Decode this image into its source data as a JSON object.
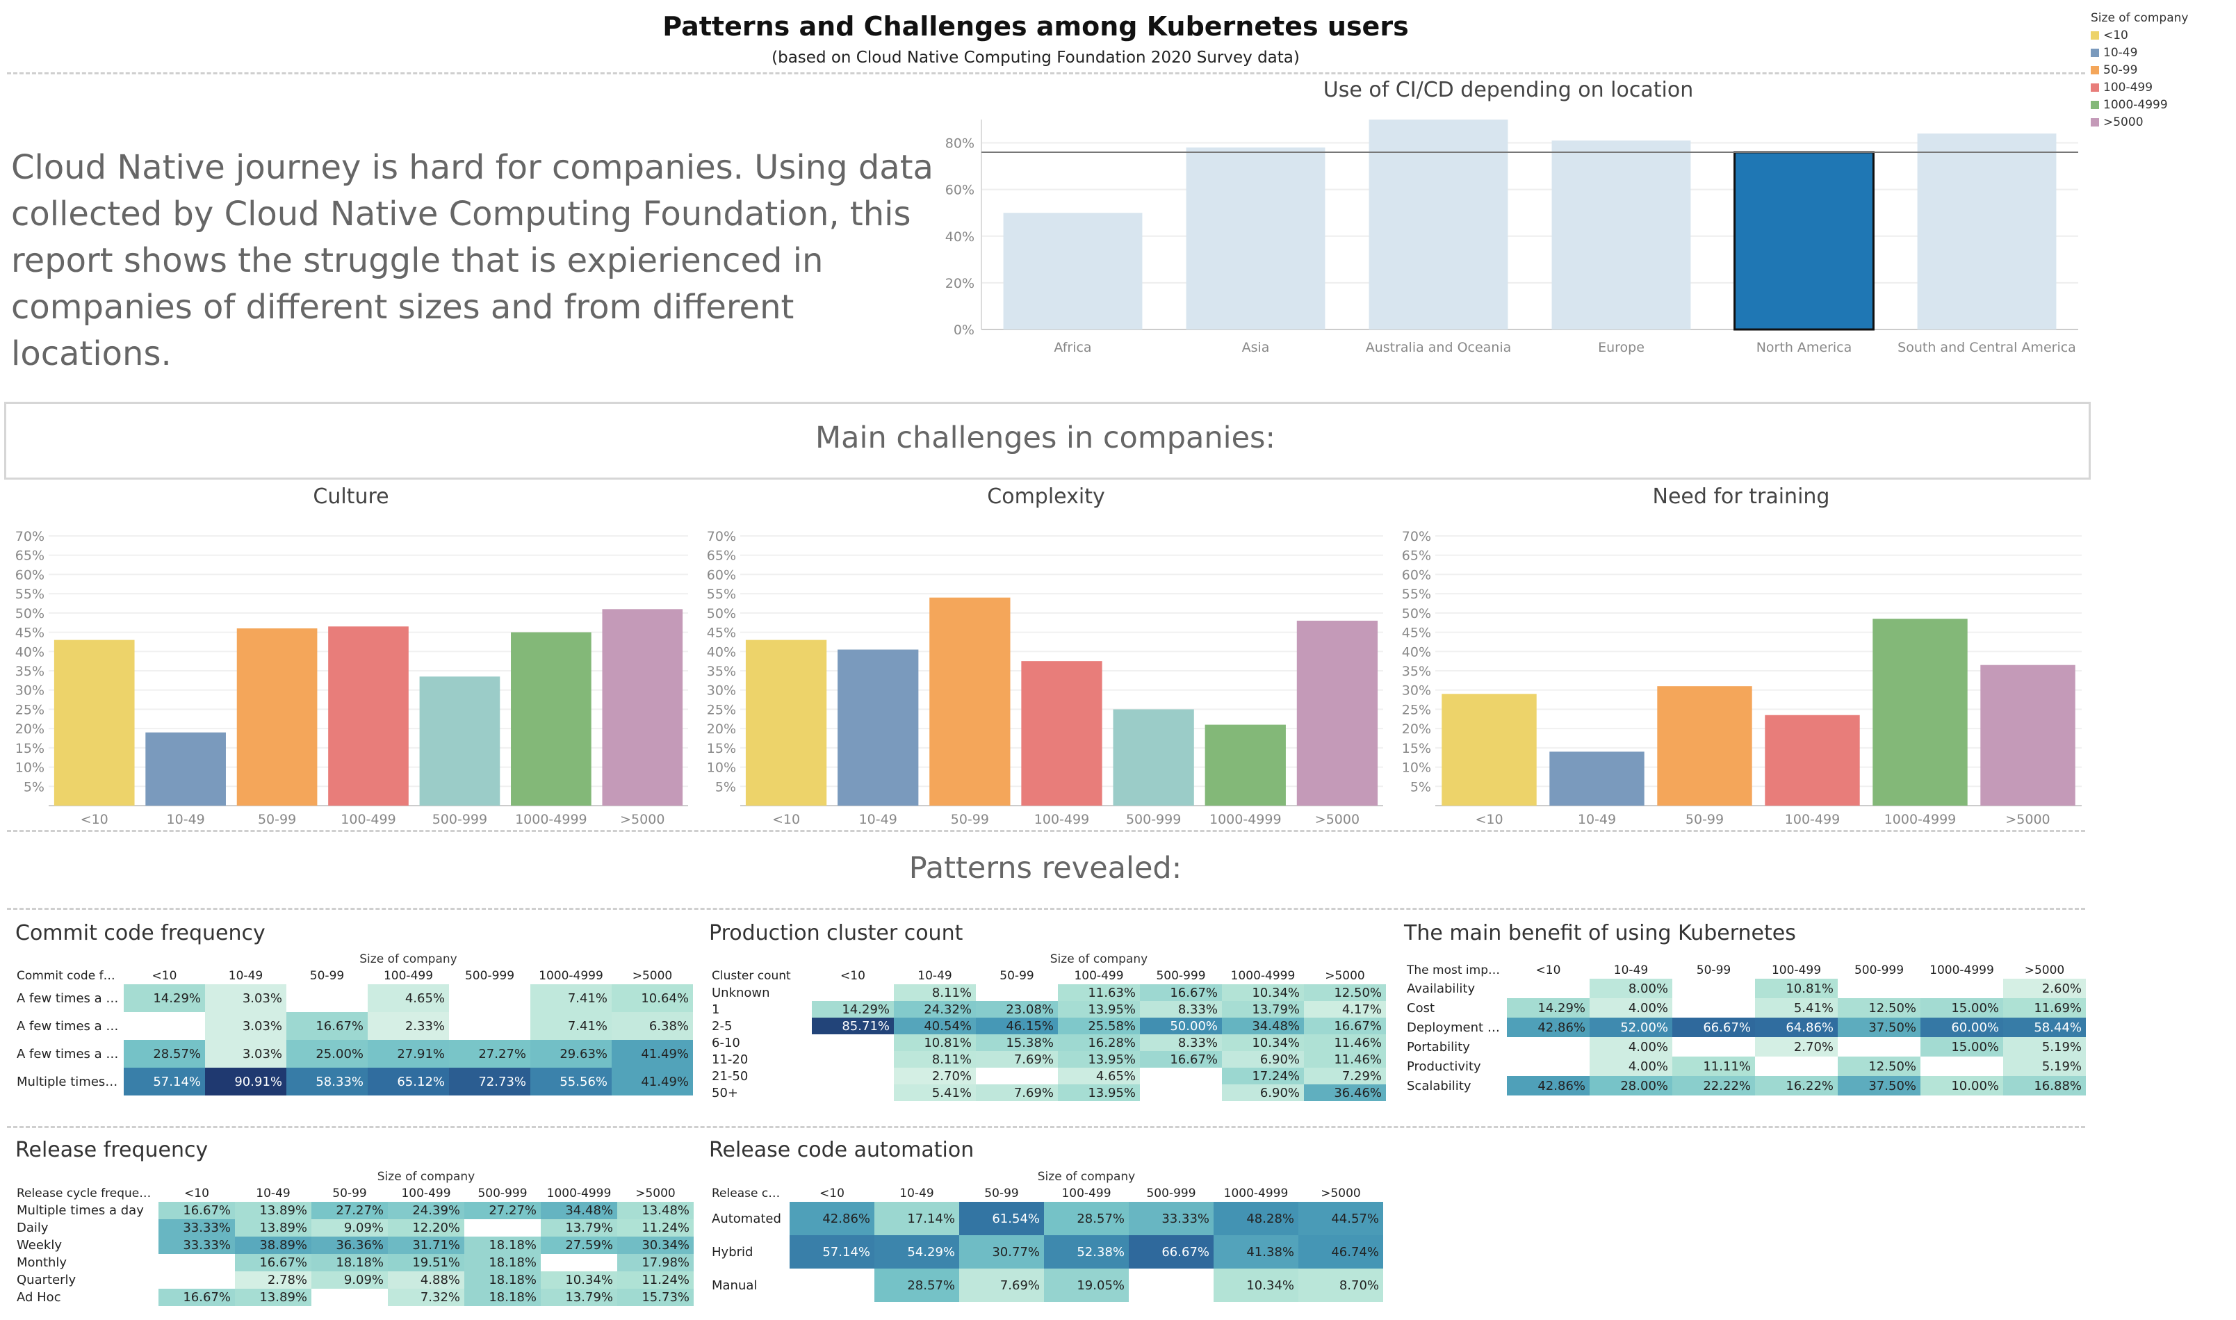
{
  "header": {
    "title": "Patterns and Challenges among Kubernetes users",
    "subtitle": "(based on Cloud Native Computing Foundation 2020 Survey data)"
  },
  "legend": {
    "title": "Size of company",
    "items": [
      {
        "label": "<10",
        "color": "#EDD36A"
      },
      {
        "label": "10-49",
        "color": "#7A9ABD"
      },
      {
        "label": "50-99",
        "color": "#F4A65A"
      },
      {
        "label": "100-499",
        "color": "#E87D7A"
      },
      {
        "label": "1000-4999",
        "color": "#83B878"
      },
      {
        "label": ">5000",
        "color": "#C49AB8"
      }
    ]
  },
  "intro": {
    "text": "Cloud Native journey is hard for companies. Using data collected by Cloud Native Computing Foundation, this report shows the struggle that is expierienced in companies  of different sizes and from different locations."
  },
  "sections": {
    "challenges": "Main challenges in companies:",
    "patterns": "Patterns revealed:"
  },
  "chart_data": [
    {
      "type": "bar",
      "title": "Use of CI/CD depending on location",
      "categories": [
        "Africa",
        "Asia",
        "Australia and Oceania",
        "Europe",
        "North America",
        "South and Central America"
      ],
      "values": [
        50,
        78,
        90,
        81,
        76,
        84
      ],
      "highlighted": "North America",
      "reference_line": 76,
      "ylim": [
        0,
        90
      ],
      "yticks": [
        "0%",
        "20%",
        "40%",
        "60%",
        "80%"
      ],
      "colors": {
        "default": "#D8E5EF",
        "highlight": "#1F77B4"
      }
    },
    {
      "type": "bar",
      "title": "Culture",
      "categories": [
        "<10",
        "10-49",
        "50-99",
        "100-499",
        "500-999",
        "1000-4999",
        ">5000"
      ],
      "values": [
        43,
        19,
        46,
        46.5,
        33.5,
        45,
        51
      ],
      "ylim": [
        0,
        70
      ],
      "yticks": [
        "5%",
        "10%",
        "15%",
        "20%",
        "25%",
        "30%",
        "35%",
        "40%",
        "45%",
        "50%",
        "55%",
        "60%",
        "65%",
        "70%"
      ]
    },
    {
      "type": "bar",
      "title": "Complexity",
      "categories": [
        "<10",
        "10-49",
        "50-99",
        "100-499",
        "500-999",
        "1000-4999",
        ">5000"
      ],
      "values": [
        43,
        40.5,
        54,
        37.5,
        25,
        21,
        48
      ],
      "ylim": [
        0,
        70
      ],
      "yticks": [
        "5%",
        "10%",
        "15%",
        "20%",
        "25%",
        "30%",
        "35%",
        "40%",
        "45%",
        "50%",
        "55%",
        "60%",
        "65%",
        "70%"
      ]
    },
    {
      "type": "bar",
      "title": "Need for training",
      "categories": [
        "<10",
        "10-49",
        "50-99",
        "100-499",
        "1000-4999",
        ">5000"
      ],
      "values": [
        29,
        14,
        31,
        23.5,
        48.5,
        36.5
      ],
      "ylim": [
        0,
        70
      ],
      "yticks": [
        "5%",
        "10%",
        "15%",
        "20%",
        "25%",
        "30%",
        "35%",
        "40%",
        "45%",
        "50%",
        "55%",
        "60%",
        "65%",
        "70%"
      ]
    },
    {
      "type": "heatmap",
      "title": "Commit code frequency",
      "col_header": "Size of company",
      "row_header": "Commit code fre..",
      "columns": [
        "<10",
        "10-49",
        "50-99",
        "100-499",
        "500-999",
        "1000-4999",
        ">5000"
      ],
      "rows": [
        "A few times a m..",
        "A few times a qu..",
        "A few times a we..",
        "Multiple times a .."
      ],
      "cells": [
        [
          "14.29%",
          "3.03%",
          "",
          "4.65%",
          "",
          "7.41%",
          "10.64%"
        ],
        [
          "",
          "3.03%",
          "16.67%",
          "2.33%",
          "",
          "7.41%",
          "6.38%"
        ],
        [
          "28.57%",
          "3.03%",
          "25.00%",
          "27.91%",
          "27.27%",
          "29.63%",
          "41.49%"
        ],
        [
          "57.14%",
          "90.91%",
          "58.33%",
          "65.12%",
          "72.73%",
          "55.56%",
          "41.49%"
        ]
      ]
    },
    {
      "type": "heatmap",
      "title": "Production cluster count",
      "col_header": "Size of company",
      "row_header": "Cluster count",
      "columns": [
        "<10",
        "10-49",
        "50-99",
        "100-499",
        "500-999",
        "1000-4999",
        ">5000"
      ],
      "rows": [
        "Unknown",
        "1",
        "2-5",
        "6-10",
        "11-20",
        "21-50",
        "50+"
      ],
      "cells": [
        [
          "",
          "8.11%",
          "",
          "11.63%",
          "16.67%",
          "10.34%",
          "12.50%"
        ],
        [
          "14.29%",
          "24.32%",
          "23.08%",
          "13.95%",
          "8.33%",
          "13.79%",
          "4.17%"
        ],
        [
          "85.71%",
          "40.54%",
          "46.15%",
          "25.58%",
          "50.00%",
          "34.48%",
          "16.67%"
        ],
        [
          "",
          "10.81%",
          "15.38%",
          "16.28%",
          "8.33%",
          "10.34%",
          "11.46%"
        ],
        [
          "",
          "8.11%",
          "7.69%",
          "13.95%",
          "16.67%",
          "6.90%",
          "11.46%"
        ],
        [
          "",
          "2.70%",
          "",
          "4.65%",
          "",
          "17.24%",
          "7.29%"
        ],
        [
          "",
          "5.41%",
          "7.69%",
          "13.95%",
          "",
          "6.90%",
          "36.46%"
        ]
      ]
    },
    {
      "type": "heatmap",
      "title": "The main benefit of using Kubernetes",
      "col_header": "",
      "row_header": "The most import..",
      "columns": [
        "<10",
        "10-49",
        "50-99",
        "100-499",
        "500-999",
        "1000-4999",
        ">5000"
      ],
      "rows": [
        "Availability",
        "Cost",
        "Deployment time",
        "Portability",
        "Productivity",
        "Scalability"
      ],
      "cells": [
        [
          "",
          "8.00%",
          "",
          "10.81%",
          "",
          "",
          "2.60%"
        ],
        [
          "14.29%",
          "4.00%",
          "",
          "5.41%",
          "12.50%",
          "15.00%",
          "11.69%"
        ],
        [
          "42.86%",
          "52.00%",
          "66.67%",
          "64.86%",
          "37.50%",
          "60.00%",
          "58.44%"
        ],
        [
          "",
          "4.00%",
          "",
          "2.70%",
          "",
          "15.00%",
          "5.19%"
        ],
        [
          "",
          "4.00%",
          "11.11%",
          "",
          "12.50%",
          "",
          "5.19%"
        ],
        [
          "42.86%",
          "28.00%",
          "22.22%",
          "16.22%",
          "37.50%",
          "10.00%",
          "16.88%"
        ]
      ]
    },
    {
      "type": "heatmap",
      "title": "Release frequency",
      "col_header": "Size of company",
      "row_header": "Release cycle frequency",
      "columns": [
        "<10",
        "10-49",
        "50-99",
        "100-499",
        "500-999",
        "1000-4999",
        ">5000"
      ],
      "rows": [
        "Multiple times a day",
        "Daily",
        "Weekly",
        "Monthly",
        "Quarterly",
        "Ad Hoc"
      ],
      "cells": [
        [
          "16.67%",
          "13.89%",
          "27.27%",
          "24.39%",
          "27.27%",
          "34.48%",
          "13.48%"
        ],
        [
          "33.33%",
          "13.89%",
          "9.09%",
          "12.20%",
          "",
          "13.79%",
          "11.24%"
        ],
        [
          "33.33%",
          "38.89%",
          "36.36%",
          "31.71%",
          "18.18%",
          "27.59%",
          "30.34%"
        ],
        [
          "",
          "16.67%",
          "18.18%",
          "19.51%",
          "18.18%",
          "",
          "17.98%"
        ],
        [
          "",
          "2.78%",
          "9.09%",
          "4.88%",
          "18.18%",
          "10.34%",
          "11.24%"
        ],
        [
          "16.67%",
          "13.89%",
          "",
          "7.32%",
          "18.18%",
          "13.79%",
          "15.73%"
        ]
      ]
    },
    {
      "type": "heatmap",
      "title": "Release code automation",
      "col_header": "Size of company",
      "row_header": "Release cod..",
      "columns": [
        "<10",
        "10-49",
        "50-99",
        "100-499",
        "500-999",
        "1000-4999",
        ">5000"
      ],
      "rows": [
        "Automated",
        "Hybrid",
        "Manual"
      ],
      "cells": [
        [
          "42.86%",
          "17.14%",
          "61.54%",
          "28.57%",
          "33.33%",
          "48.28%",
          "44.57%"
        ],
        [
          "57.14%",
          "54.29%",
          "30.77%",
          "52.38%",
          "66.67%",
          "41.38%",
          "46.74%"
        ],
        [
          "",
          "28.57%",
          "7.69%",
          "19.05%",
          "",
          "10.34%",
          "8.70%"
        ]
      ]
    }
  ]
}
